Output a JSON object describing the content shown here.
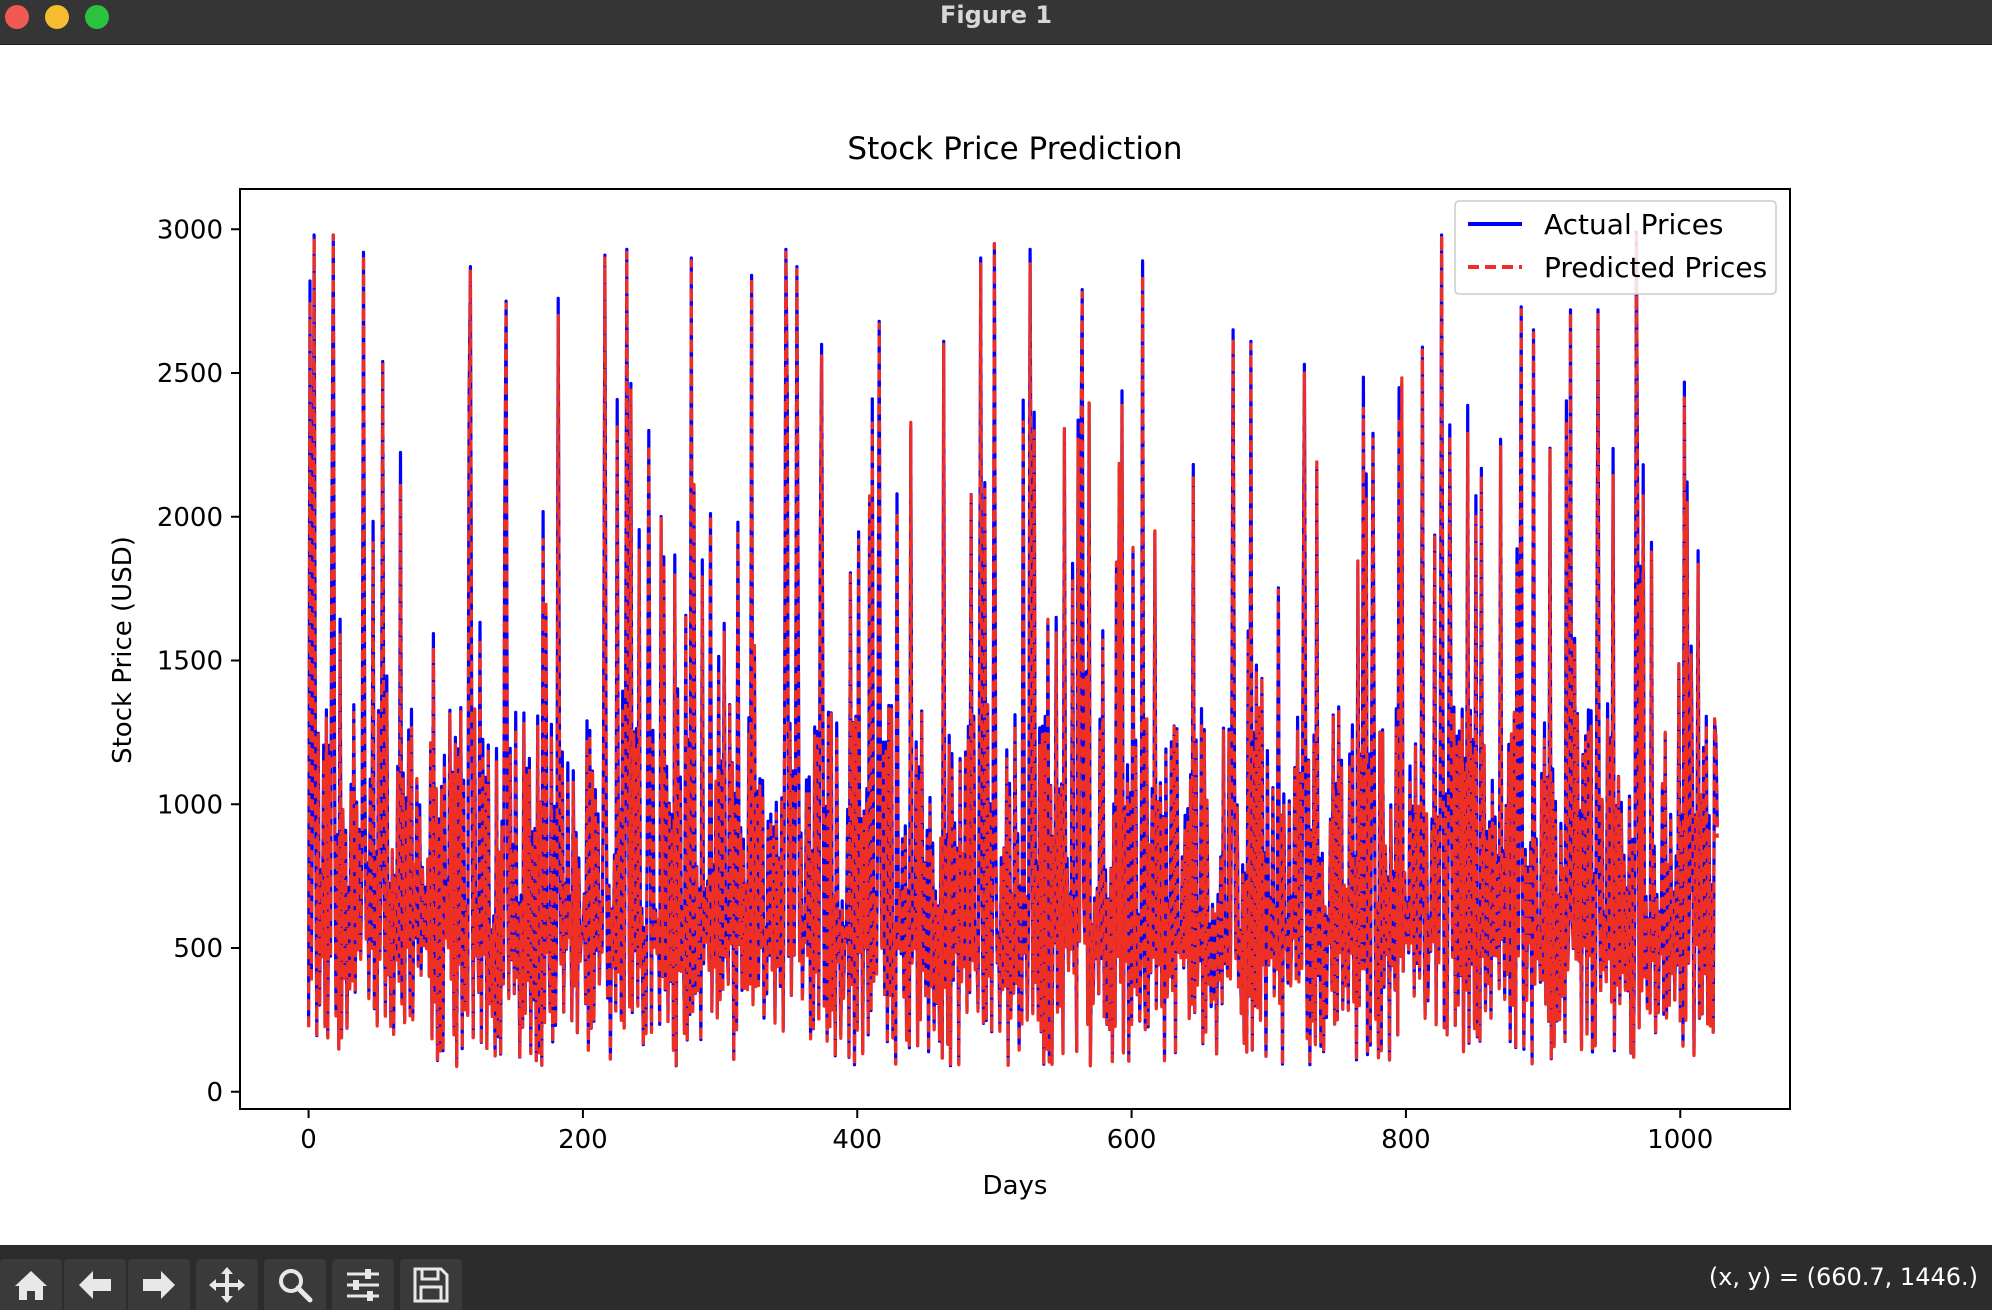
{
  "window": {
    "title": "Figure 1"
  },
  "status": {
    "coords": "(x, y) = (660.7, 1446.)"
  },
  "toolbar": {
    "tools": [
      "home-icon",
      "back-arrow-icon",
      "forward-arrow-icon",
      "pan-icon",
      "zoom-icon",
      "configure-subplots-icon",
      "save-icon"
    ]
  },
  "colors": {
    "actual": "#0000ff",
    "predicted": "#ee3024"
  },
  "chart_data": {
    "type": "line",
    "title": "Stock Price Prediction",
    "xlabel": "Days",
    "ylabel": "Stock Price (USD)",
    "xlim": [
      -50,
      1080
    ],
    "ylim": [
      -60,
      3140
    ],
    "xticks": [
      0,
      200,
      400,
      600,
      800,
      1000
    ],
    "yticks": [
      0,
      500,
      1000,
      1500,
      2000,
      2500,
      3000
    ],
    "grid": false,
    "legend": "top-right",
    "x_range": [
      0,
      1027
    ],
    "series": [
      {
        "name": "Actual Prices",
        "style": "solid",
        "peaks": [
          [
            1,
            2820
          ],
          [
            4,
            2980
          ],
          [
            18,
            2980
          ],
          [
            40,
            2920
          ],
          [
            54,
            2540
          ],
          [
            118,
            2870
          ],
          [
            144,
            2750
          ],
          [
            182,
            2760
          ],
          [
            216,
            2910
          ],
          [
            232,
            2930
          ],
          [
            248,
            2300
          ],
          [
            279,
            2900
          ],
          [
            323,
            2840
          ],
          [
            348,
            2930
          ],
          [
            356,
            2870
          ],
          [
            374,
            2600
          ],
          [
            416,
            2680
          ],
          [
            463,
            2610
          ],
          [
            490,
            2900
          ],
          [
            500,
            2950
          ],
          [
            526,
            2930
          ],
          [
            564,
            2790
          ],
          [
            608,
            2890
          ],
          [
            674,
            2650
          ],
          [
            687,
            2610
          ],
          [
            726,
            2530
          ],
          [
            776,
            2290
          ],
          [
            812,
            2590
          ],
          [
            826,
            2980
          ],
          [
            832,
            2320
          ],
          [
            884,
            2730
          ],
          [
            893,
            2650
          ],
          [
            920,
            2720
          ],
          [
            940,
            2720
          ],
          [
            968,
            2990
          ],
          [
            1008,
            1550
          ],
          [
            1026,
            1230
          ]
        ]
      },
      {
        "name": "Predicted Prices",
        "style": "dashed",
        "peaks": [
          [
            1,
            2750
          ],
          [
            4,
            2970
          ],
          [
            18,
            2980
          ],
          [
            40,
            2910
          ],
          [
            54,
            2530
          ],
          [
            118,
            2860
          ],
          [
            144,
            2740
          ],
          [
            182,
            2700
          ],
          [
            216,
            2900
          ],
          [
            232,
            2920
          ],
          [
            248,
            2250
          ],
          [
            279,
            2890
          ],
          [
            323,
            2830
          ],
          [
            348,
            2920
          ],
          [
            356,
            2860
          ],
          [
            374,
            2560
          ],
          [
            416,
            2670
          ],
          [
            463,
            2600
          ],
          [
            490,
            2880
          ],
          [
            500,
            2950
          ],
          [
            526,
            2880
          ],
          [
            564,
            2780
          ],
          [
            608,
            2840
          ],
          [
            674,
            2620
          ],
          [
            687,
            2600
          ],
          [
            726,
            2500
          ],
          [
            776,
            2270
          ],
          [
            812,
            2580
          ],
          [
            826,
            2980
          ],
          [
            832,
            2280
          ],
          [
            884,
            2720
          ],
          [
            893,
            2640
          ],
          [
            920,
            2710
          ],
          [
            940,
            2710
          ],
          [
            968,
            2980
          ],
          [
            1008,
            1520
          ],
          [
            1026,
            1220
          ]
        ]
      }
    ]
  }
}
